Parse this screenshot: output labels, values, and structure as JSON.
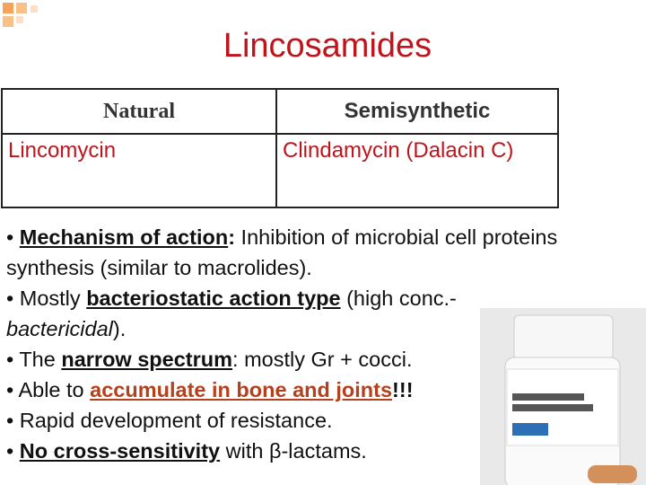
{
  "title": "Lincosamides",
  "table": {
    "header": [
      "Natural",
      "Semisynthetic"
    ],
    "rows": [
      [
        "Lincomycin",
        "Clindamycin (Dalacin C)"
      ]
    ]
  },
  "bullets": [
    [
      {
        "text": "• "
      },
      {
        "text": "Mechanism of action",
        "bold": true,
        "underline": true
      },
      {
        "text": ":",
        "bold": true
      },
      {
        "text": " Inhibition of microbial cell proteins synthesis (similar to macrolides)."
      }
    ],
    [
      {
        "text": "• Mostly "
      },
      {
        "text": "bacteriostatic action type",
        "bold": true,
        "underline": true
      },
      {
        "text": " (high conc.- "
      },
      {
        "text": "bactericidal",
        "italic": true
      },
      {
        "text": ")."
      }
    ],
    [
      {
        "text": "• The "
      },
      {
        "text": "narrow spectrum",
        "bold": true,
        "underline": true
      },
      {
        "text": ": mostly Gr + cocci."
      }
    ],
    [
      {
        "text": "• Able to "
      },
      {
        "text": "accumulate in bone and joints",
        "bold": true,
        "underline": true,
        "color": "#b5401c"
      },
      {
        "text": "!!!",
        "bold": true
      }
    ],
    [
      {
        "text": "• Rapid development of resistance."
      }
    ],
    [
      {
        "text": "• "
      },
      {
        "text": "No cross-sensitivity",
        "bold": true,
        "underline": true
      },
      {
        "text": " with β-lactams."
      }
    ]
  ]
}
